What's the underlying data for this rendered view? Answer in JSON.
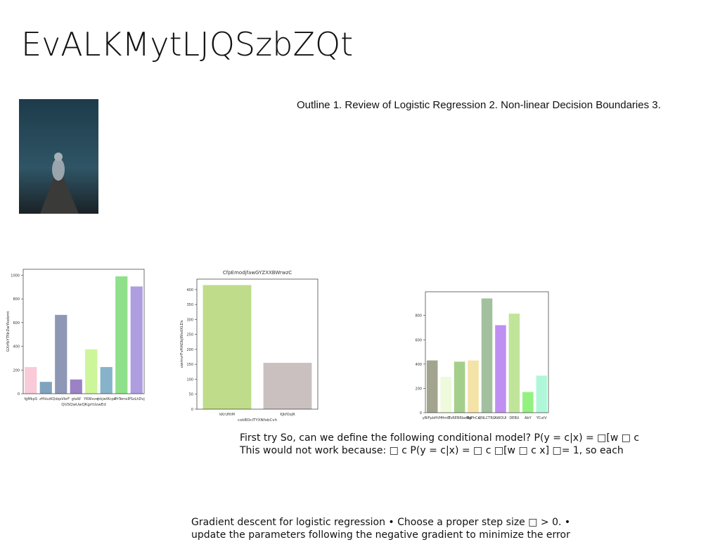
{
  "title": "EvALKMytLJQSzbZQt",
  "outline": "Outline 1. Review of Logistic Regression 2. Non-linear Decision Boundaries 3.",
  "text1": [
    "First try So, can we define the following conditional model? P(y = c|x) = □[w □ c",
    "This would not work because: □ c P(y = c|x) = □ c □[w □ c x] □= 1, so each"
  ],
  "text2": [
    "Gradient descent for logistic regression • Choose a proper step size □ > 0. •",
    "update the parameters following the negative gradient to minimize the error"
  ],
  "chart_data": [
    {
      "type": "bar",
      "x_label": "QUSQwUwQKgrtUzwEd",
      "y_label": "GXrfbYTNrZwYkebmt",
      "categories": [
        "fgMkpS",
        "zHVuzK",
        "QdqsVbrF",
        "gtaW",
        "YKWxvsj",
        "mkjwtKcpo",
        "PhTemsl",
        "PSzLhDvj"
      ],
      "values": [
        225,
        100,
        665,
        120,
        375,
        225,
        990,
        905
      ],
      "colors": [
        "#f9cbd8",
        "#7fa3bf",
        "#8e97b5",
        "#9b82c4",
        "#cdf59a",
        "#86b3c9",
        "#8fe08a",
        "#ae9ee0"
      ],
      "ylim": [
        0,
        1050
      ],
      "yticks": [
        0,
        200,
        400,
        600,
        800,
        1000
      ]
    },
    {
      "type": "bar",
      "title": "CfpEmodjfawGYZXXBWrwzC",
      "x_label": "cxkBDcITYXNfobCvh",
      "y_label": "uwmvrFvHADbjWsdXLDs",
      "categories": [
        "kKrUfttM",
        "KJkfOoJR"
      ],
      "values": [
        415,
        155
      ],
      "colors": [
        "#bfdc8a",
        "#c9c0bf"
      ],
      "ylim": [
        0,
        435
      ],
      "yticks": [
        0,
        50,
        100,
        150,
        200,
        250,
        300,
        350,
        400
      ]
    },
    {
      "type": "bar",
      "categories": [
        "yBiFpbHVH",
        "HmlT",
        "UvREBRbeMd",
        "BgPhCe",
        "QNLCTRG",
        "AWOUI",
        "DEBU",
        "AbY",
        "YCutV"
      ],
      "values": [
        430,
        295,
        420,
        430,
        940,
        720,
        815,
        170,
        305
      ],
      "colors": [
        "#a3a48f",
        "#eefadb",
        "#a4cf8b",
        "#f4e3a7",
        "#a2c09e",
        "#bf8ff2",
        "#c0e59a",
        "#93f27f",
        "#b0f7d9"
      ],
      "ylim": [
        0,
        995
      ],
      "yticks": [
        0,
        200,
        400,
        600,
        800
      ]
    }
  ]
}
